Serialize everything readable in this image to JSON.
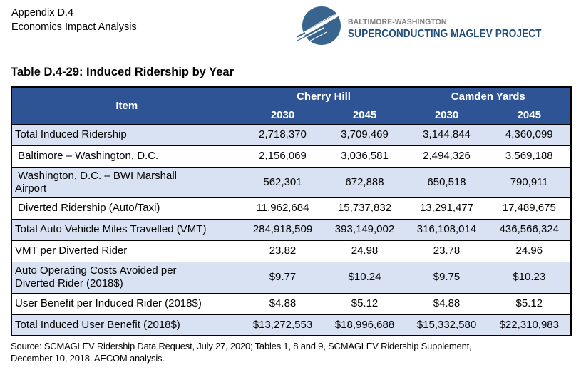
{
  "page_header": {
    "line1": "Appendix D.4",
    "line2": "Economics Impact Analysis"
  },
  "logo": {
    "brand_top": "BALTIMORE-WASHINGTON",
    "brand_bottom": "SUPERCONDUCTING MAGLEV PROJECT",
    "circle_color": "#39648E",
    "navy_color": "#1F4E79",
    "gray_color": "#7F8184"
  },
  "table_title": "Table D.4-29: Induced Ridership by Year",
  "table": {
    "header_bg": "#2F5496",
    "stripe_bg": "#D9E2F3",
    "item_header": "Item",
    "groups": [
      {
        "label": "Cherry Hill",
        "years": [
          "2030",
          "2045"
        ]
      },
      {
        "label": "Camden Yards",
        "years": [
          "2030",
          "2045"
        ]
      }
    ],
    "rows": [
      {
        "item": "Total Induced Ridership",
        "values": [
          "2,718,370",
          "3,709,469",
          "3,144,844",
          "4,360,099"
        ],
        "shaded": true
      },
      {
        "item": " Baltimore – Washington, D.C.",
        "values": [
          "2,156,069",
          "3,036,581",
          "2,494,326",
          "3,569,188"
        ],
        "shaded": false
      },
      {
        "item": " Washington, D.C. – BWI Marshall\nAirport",
        "values": [
          "562,301",
          "672,888",
          "650,518",
          "790,911"
        ],
        "shaded": true
      },
      {
        "item": " Diverted Ridership (Auto/Taxi)",
        "values": [
          "11,962,684",
          "15,737,832",
          "13,291,477",
          "17,489,675"
        ],
        "shaded": false
      },
      {
        "item": "Total Auto Vehicle Miles Travelled (VMT)",
        "values": [
          "284,918,509",
          "393,149,002",
          "316,108,014",
          "436,566,324"
        ],
        "shaded": true
      },
      {
        "item": "VMT per Diverted Rider",
        "values": [
          "23.82",
          "24.98",
          "23.78",
          "24.96"
        ],
        "shaded": false
      },
      {
        "item": "Auto Operating Costs Avoided per\nDiverted Rider (2018$)",
        "values": [
          "$9.77",
          "$10.24",
          "$9.75",
          "$10.23"
        ],
        "shaded": true
      },
      {
        "item": "User Benefit per Induced Rider (2018$)",
        "values": [
          "$4.88",
          "$5.12",
          "$4.88",
          "$5.12"
        ],
        "shaded": false
      },
      {
        "item": "Total Induced User Benefit (2018$)",
        "values": [
          "$13,272,553",
          "$18,996,688",
          "$15,332,580",
          "$22,310,983"
        ],
        "shaded": true
      }
    ]
  },
  "source": {
    "line1": "Source: SCMAGLEV Ridership Data Request, July 27, 2020; Tables 1, 8 and 9, SCMAGLEV Ridership Supplement,",
    "line2": "December 10, 2018. AECOM analysis."
  }
}
